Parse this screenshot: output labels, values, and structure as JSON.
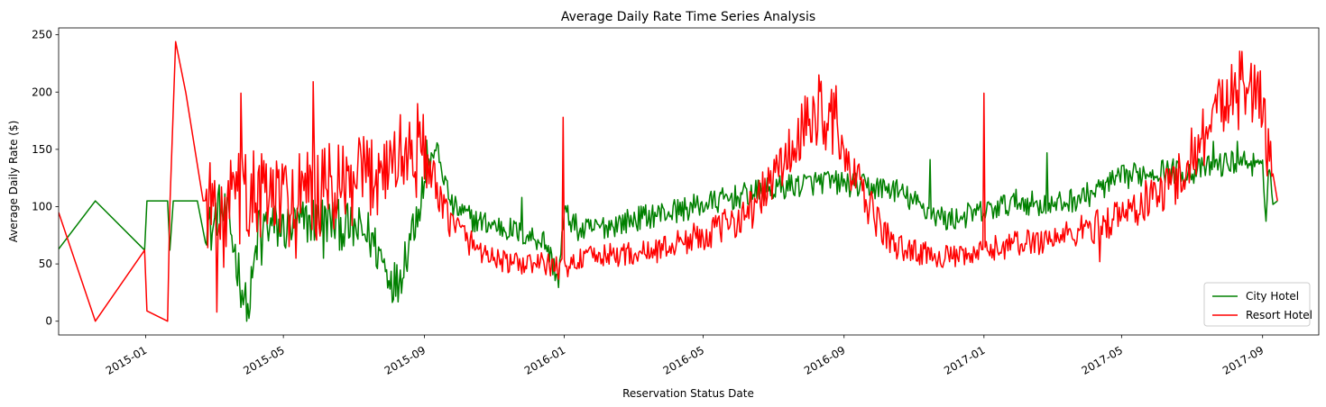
{
  "chart_data": {
    "type": "line",
    "title": "Average Daily Rate Time Series Analysis",
    "xlabel": "Reservation Status Date",
    "ylabel": "Average Daily Rate ($)",
    "xlim": [
      "2014-10-17",
      "2017-10-20"
    ],
    "ylim": [
      -12,
      256
    ],
    "yticks": [
      0,
      50,
      100,
      150,
      200,
      250
    ],
    "xticks": [
      "2015-01-01",
      "2015-05-01",
      "2015-09-01",
      "2016-01-01",
      "2016-05-01",
      "2016-09-01",
      "2017-01-01",
      "2017-05-01",
      "2017-09-01"
    ],
    "xtick_labels": [
      "2015-01",
      "2015-05",
      "2015-09",
      "2016-01",
      "2016-05",
      "2016-09",
      "2017-01",
      "2017-05",
      "2017-09"
    ],
    "legend_position": "lower-right",
    "grid": false,
    "colors": {
      "City Hotel": "#008000",
      "Resort Hotel": "#ff0000"
    },
    "series": [
      {
        "name": "City Hotel",
        "anchors": [
          [
            "2014-10-17",
            63
          ],
          [
            "2014-11-18",
            105
          ],
          [
            "2014-12-31",
            62
          ],
          [
            "2015-01-02",
            105
          ],
          [
            "2015-01-20",
            105
          ],
          [
            "2015-01-22",
            62
          ],
          [
            "2015-01-25",
            105
          ],
          [
            "2015-02-15",
            105
          ],
          [
            "2015-02-28",
            77
          ],
          [
            "2015-03-05",
            100
          ],
          [
            "2015-03-15",
            85
          ],
          [
            "2015-03-31",
            3
          ],
          [
            "2015-04-10",
            85
          ],
          [
            "2015-05-01",
            80
          ],
          [
            "2015-06-01",
            90
          ],
          [
            "2015-07-15",
            75
          ],
          [
            "2015-08-08",
            31
          ],
          [
            "2015-08-25",
            95
          ],
          [
            "2015-09-10",
            155
          ],
          [
            "2015-09-25",
            100
          ],
          [
            "2015-10-15",
            88
          ],
          [
            "2015-11-15",
            80
          ],
          [
            "2015-12-15",
            70
          ],
          [
            "2015-12-27",
            36
          ],
          [
            "2016-01-01",
            95
          ],
          [
            "2016-01-15",
            78
          ],
          [
            "2016-02-15",
            85
          ],
          [
            "2016-03-15",
            92
          ],
          [
            "2016-04-15",
            98
          ],
          [
            "2016-05-15",
            105
          ],
          [
            "2016-06-15",
            112
          ],
          [
            "2016-07-15",
            118
          ],
          [
            "2016-08-15",
            122
          ],
          [
            "2016-09-01",
            120
          ],
          [
            "2016-09-15",
            118
          ],
          [
            "2016-10-15",
            115
          ],
          [
            "2016-11-15",
            95
          ],
          [
            "2016-12-01",
            88
          ],
          [
            "2016-12-15",
            92
          ],
          [
            "2017-01-01",
            95
          ],
          [
            "2017-01-15",
            100
          ],
          [
            "2017-02-01",
            105
          ],
          [
            "2017-03-01",
            100
          ],
          [
            "2017-04-01",
            110
          ],
          [
            "2017-05-01",
            125
          ],
          [
            "2017-06-01",
            132
          ],
          [
            "2017-07-01",
            130
          ],
          [
            "2017-08-01",
            138
          ],
          [
            "2017-08-20",
            140
          ],
          [
            "2017-09-01",
            130
          ],
          [
            "2017-09-04",
            94
          ],
          [
            "2017-09-06",
            140
          ],
          [
            "2017-09-10",
            104
          ],
          [
            "2017-09-14",
            105
          ]
        ],
        "spikes": [
          [
            "2015-04-05",
            49
          ],
          [
            "2015-04-12",
            49
          ],
          [
            "2015-06-05",
            55
          ],
          [
            "2015-07-30",
            45
          ],
          [
            "2015-09-03",
            158
          ],
          [
            "2015-09-08",
            145
          ],
          [
            "2015-11-25",
            108
          ],
          [
            "2016-11-15",
            141
          ],
          [
            "2017-02-25",
            147
          ],
          [
            "2017-07-20",
            157
          ],
          [
            "2017-08-10",
            157
          ]
        ]
      },
      {
        "name": "Resort Hotel",
        "anchors": [
          [
            "2014-10-17",
            95
          ],
          [
            "2014-11-18",
            0
          ],
          [
            "2014-12-31",
            62
          ],
          [
            "2015-01-02",
            9
          ],
          [
            "2015-01-20",
            0
          ],
          [
            "2015-01-22",
            100
          ],
          [
            "2015-02-05",
            150
          ],
          [
            "2015-02-20",
            105
          ],
          [
            "2015-03-05",
            100
          ],
          [
            "2015-04-01",
            110
          ],
          [
            "2015-05-01",
            105
          ],
          [
            "2015-06-01",
            110
          ],
          [
            "2015-07-01",
            115
          ],
          [
            "2015-07-25",
            135
          ],
          [
            "2015-08-15",
            145
          ],
          [
            "2015-08-31",
            150
          ],
          [
            "2015-09-15",
            100
          ],
          [
            "2015-10-01",
            80
          ],
          [
            "2015-10-15",
            65
          ],
          [
            "2015-11-01",
            55
          ],
          [
            "2015-11-15",
            50
          ],
          [
            "2015-12-15",
            50
          ],
          [
            "2015-12-31",
            45
          ],
          [
            "2016-01-15",
            55
          ],
          [
            "2016-02-15",
            58
          ],
          [
            "2016-03-15",
            60
          ],
          [
            "2016-04-15",
            70
          ],
          [
            "2016-05-15",
            80
          ],
          [
            "2016-06-15",
            100
          ],
          [
            "2016-07-01",
            125
          ],
          [
            "2016-07-15",
            145
          ],
          [
            "2016-08-10",
            185
          ],
          [
            "2016-08-25",
            175
          ],
          [
            "2016-09-01",
            140
          ],
          [
            "2016-09-15",
            115
          ],
          [
            "2016-10-01",
            85
          ],
          [
            "2016-10-15",
            65
          ],
          [
            "2016-11-15",
            58
          ],
          [
            "2016-12-15",
            55
          ],
          [
            "2017-01-15",
            65
          ],
          [
            "2017-02-15",
            70
          ],
          [
            "2017-03-15",
            75
          ],
          [
            "2017-04-15",
            85
          ],
          [
            "2017-05-15",
            100
          ],
          [
            "2017-06-15",
            120
          ],
          [
            "2017-07-01",
            145
          ],
          [
            "2017-07-15",
            170
          ],
          [
            "2017-08-01",
            195
          ],
          [
            "2017-08-15",
            205
          ],
          [
            "2017-08-31",
            190
          ],
          [
            "2017-09-05",
            150
          ],
          [
            "2017-09-10",
            150
          ],
          [
            "2017-09-14",
            105
          ]
        ],
        "spikes": [
          [
            "2015-01-27",
            244
          ],
          [
            "2015-02-07",
            199
          ],
          [
            "2015-03-04",
            8
          ],
          [
            "2015-03-10",
            47
          ],
          [
            "2015-03-25",
            199
          ],
          [
            "2015-05-12",
            55
          ],
          [
            "2015-05-27",
            209
          ],
          [
            "2015-06-10",
            155
          ],
          [
            "2015-12-31",
            178
          ],
          [
            "2016-08-10",
            215
          ],
          [
            "2017-01-01",
            199
          ],
          [
            "2017-04-12",
            52
          ],
          [
            "2017-08-05",
            224
          ],
          [
            "2017-08-22",
            225
          ]
        ]
      }
    ]
  }
}
